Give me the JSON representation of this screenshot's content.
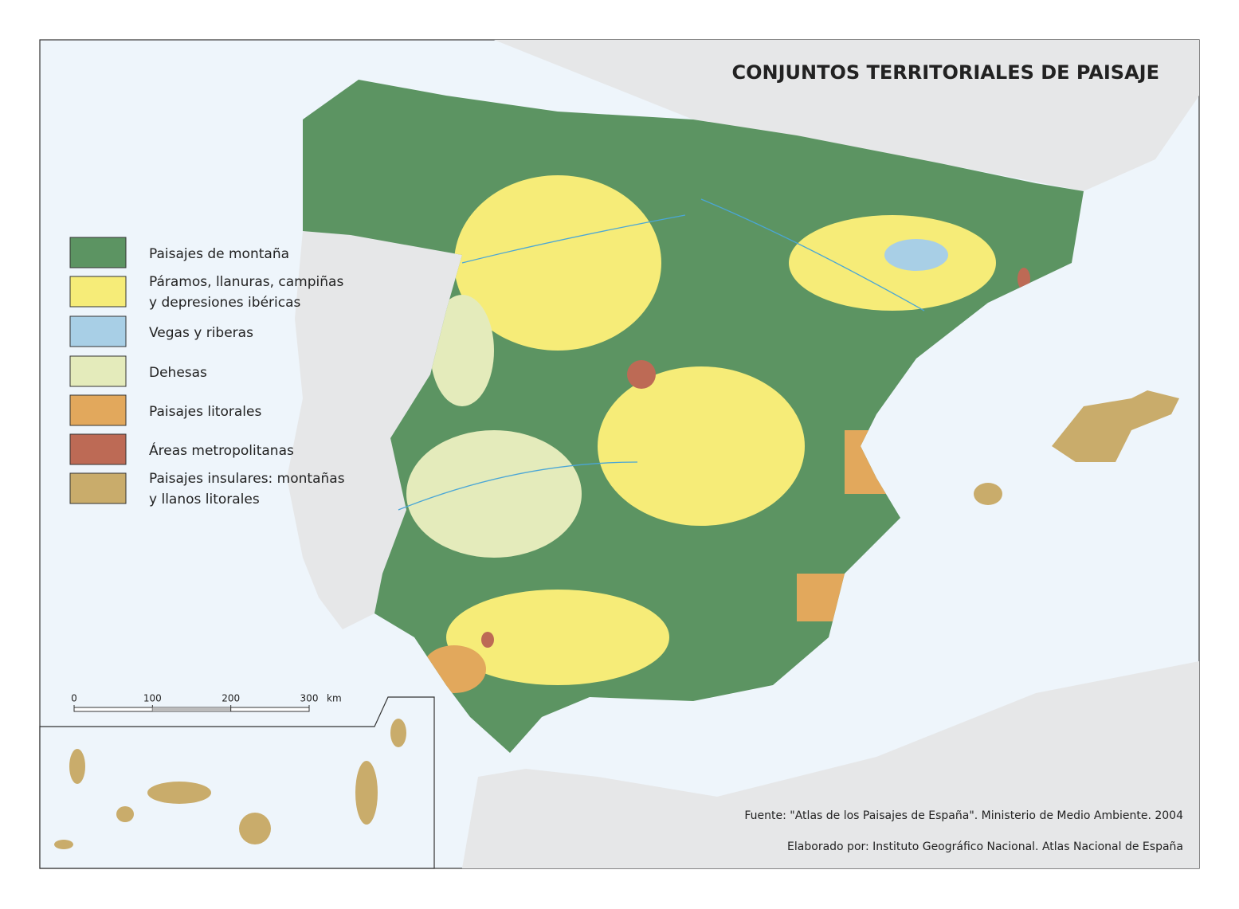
{
  "title": "CONJUNTOS TERRITORIALES DE PAISAJE",
  "legend": [
    {
      "lines": [
        "Paisajes de montaña"
      ],
      "color": "#5c9462"
    },
    {
      "lines": [
        "Páramos, llanuras, campiñas",
        "y depresiones ibéricas"
      ],
      "color": "#f6ec78"
    },
    {
      "lines": [
        "Vegas y riberas"
      ],
      "color": "#a8cfe6"
    },
    {
      "lines": [
        "Dehesas"
      ],
      "color": "#e4ebbb"
    },
    {
      "lines": [
        "Paisajes litorales"
      ],
      "color": "#e2a85c"
    },
    {
      "lines": [
        "Áreas metropolitanas"
      ],
      "color": "#bd6a55"
    },
    {
      "lines": [
        "Paisajes insulares: montañas",
        "y llanos litorales"
      ],
      "color": "#c9ac6b"
    }
  ],
  "scale": {
    "ticks": [
      0,
      100,
      200,
      300
    ],
    "unit": "km"
  },
  "source": "Fuente: \"Atlas de los Paisajes de España\". Ministerio de Medio Ambiente. 2004",
  "credit": "Elaborado por: Instituto Geográfico Nacional. Atlas Nacional de España"
}
